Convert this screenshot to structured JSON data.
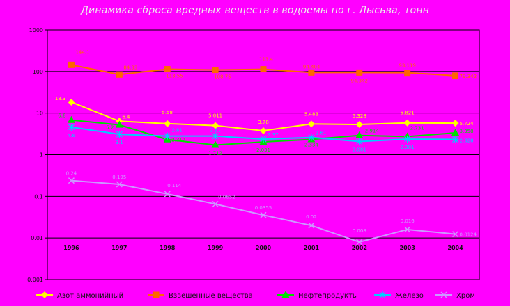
{
  "chart_data": {
    "type": "line",
    "title": "Динамика сброса вредных веществ в водоемы по г. Лысьва, тонн",
    "xlabel": "",
    "ylabel": "",
    "y_scale": "log",
    "ylim": [
      0.001,
      1000
    ],
    "y_ticks": [
      "1000",
      "100",
      "10",
      "1",
      "0.1",
      "0.01",
      "0.001"
    ],
    "categories": [
      "1996",
      "1997",
      "1998",
      "1999",
      "2000",
      "2001",
      "2002",
      "2003",
      "2004"
    ],
    "grid": "horizontal",
    "legend_position": "bottom",
    "series": [
      {
        "name": "Азот аммонийный",
        "color": "#FFFF00",
        "marker": "diamond",
        "values": [
          18.3,
          6.4,
          5.58,
          5.011,
          3.78,
          5.488,
          5.328,
          5.821,
          5.724
        ],
        "labels": [
          "18.3",
          "6.4",
          "5.58",
          "5.011",
          "3.78",
          "5.488",
          "5.328",
          "5.821",
          "5.724"
        ]
      },
      {
        "name": "Взвешенные вещества",
        "color": "#FF6600",
        "marker": "square",
        "values": [
          144.1,
          84.33,
          113.55,
          108.75,
          113.4,
          94.404,
          94.342,
          93.119,
          79.342
        ],
        "labels": [
          "144.1",
          "84.33",
          "113.55",
          "108.75",
          "113.4",
          "94.404",
          "94.342",
          "93.119",
          "79.342"
        ]
      },
      {
        "name": "Нефтепродукты",
        "color": "#00DD00",
        "marker": "triangle",
        "values": [
          6.8,
          5.2,
          2.312,
          1.712,
          2.031,
          2.334,
          2.914,
          2.731,
          3.358
        ],
        "labels": [
          "6.8",
          "5.2",
          "2.312",
          "1.712",
          "2.031",
          "2.334",
          "2.914",
          "2.731",
          "3.358"
        ]
      },
      {
        "name": "Железо",
        "color": "#00CCFF",
        "marker": "star",
        "values": [
          4.6,
          3.1,
          2.81,
          2.81,
          2.37,
          2.61,
          2.081,
          2.381,
          2.328
        ],
        "labels": [
          "4.6",
          "3.1",
          "2.81",
          "2.81",
          "2.37",
          "2.61",
          "2.081",
          "2.381",
          "2.328"
        ]
      },
      {
        "name": "Хром",
        "color": "#CC99FF",
        "marker": "x",
        "values": [
          0.24,
          0.195,
          0.114,
          0.0652,
          0.0355,
          0.02,
          0.008,
          0.016,
          0.0124
        ],
        "labels": [
          "0.24",
          "0.195",
          "0.114",
          "0.0652",
          "0.0355",
          "0.02",
          "0.008",
          "0.016",
          "0.0124"
        ]
      }
    ]
  }
}
